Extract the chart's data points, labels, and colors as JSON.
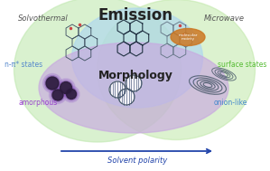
{
  "title_emission": "Emission",
  "title_morphology": "Morphology",
  "label_solvothermal": "Solvothermal",
  "label_microwave": "Microwave",
  "label_npi": "n-π* states",
  "label_surface": "surface states",
  "label_amorphous": "amorphous",
  "label_onion": "onion-like",
  "label_molecular": "molecular\nmoiety",
  "label_solvent": "Solvent polarity",
  "bg_color": "#ffffff",
  "circle_green_left_color": "#c0e8b0",
  "circle_green_right_color": "#c0e8a8",
  "circle_blue_color": "#b0d8ee",
  "circle_purple_color": "#c8a8e0",
  "emission_title_color": "#222222",
  "morphology_title_color": "#222222",
  "solvothermal_color": "#555555",
  "microwave_color": "#555555",
  "npi_color": "#5588cc",
  "surface_color": "#55bb33",
  "amorphous_color": "#9944cc",
  "onion_color": "#4488cc",
  "molecular_color": "#cc7722",
  "solvent_arrow_color": "#2244aa",
  "solvent_text_color": "#2244aa",
  "ring_color_left": "#445566",
  "ring_color_center": "#223344",
  "ring_color_right": "#667788"
}
